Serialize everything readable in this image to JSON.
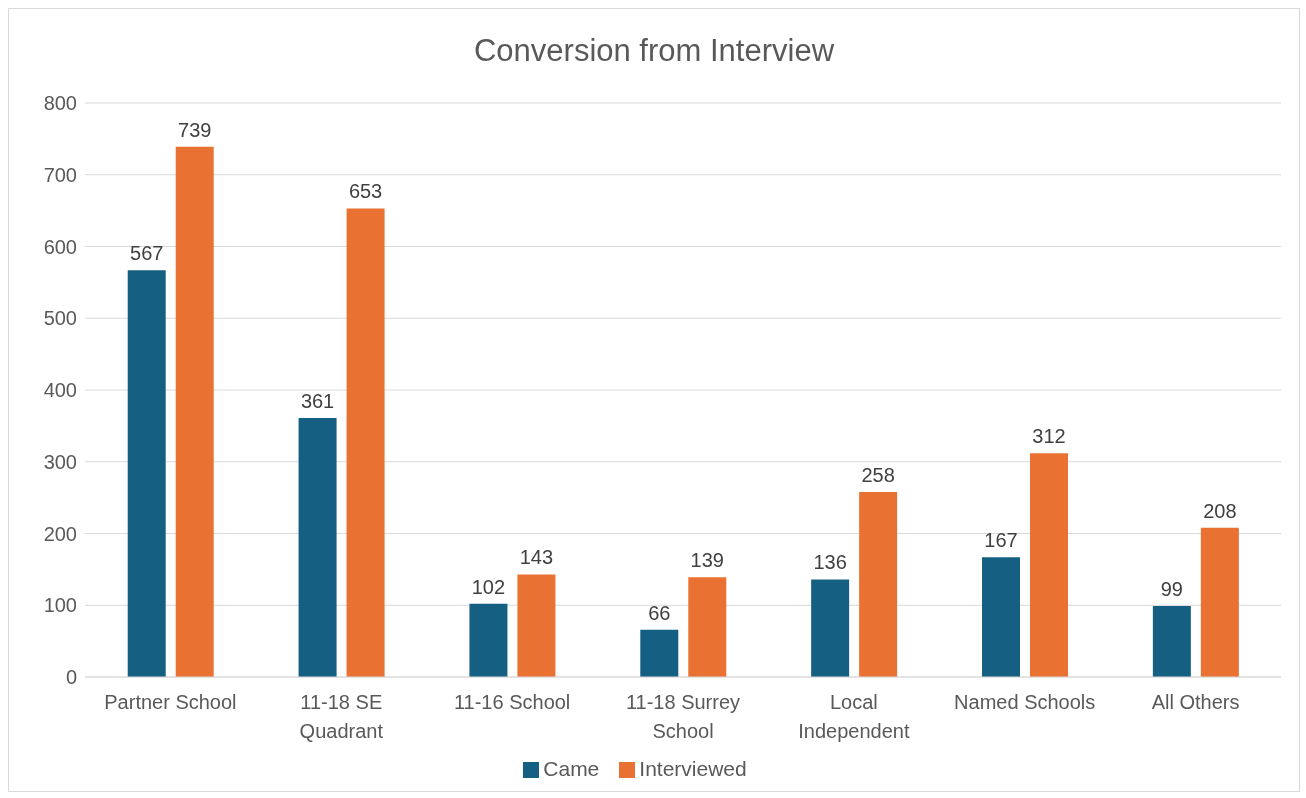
{
  "chart_data": {
    "type": "bar",
    "title": "Conversion from Interview",
    "categories": [
      "Partner School",
      "11-18 SE Quadrant",
      "11-16 School",
      "11-18 Surrey School",
      "Local Independent",
      "Named Schools",
      "All Others"
    ],
    "series": [
      {
        "name": "Came",
        "color": "#156082",
        "values": [
          567,
          361,
          102,
          66,
          136,
          167,
          99
        ]
      },
      {
        "name": "Interviewed",
        "color": "#e97132",
        "values": [
          739,
          653,
          143,
          139,
          258,
          312,
          208
        ]
      }
    ],
    "ylim": [
      0,
      800
    ],
    "yticks": [
      0,
      100,
      200,
      300,
      400,
      500,
      600,
      700,
      800
    ],
    "grid": "y",
    "legend": "bottom",
    "data_labels": true
  }
}
